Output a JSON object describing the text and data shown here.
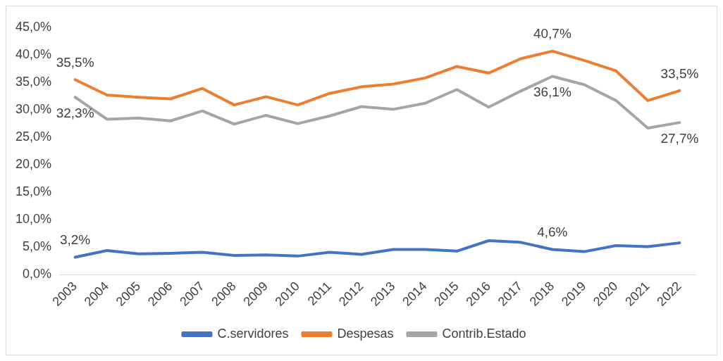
{
  "chart_data": {
    "type": "line",
    "categories": [
      "2003",
      "2004",
      "2005",
      "2006",
      "2007",
      "2008",
      "2009",
      "2010",
      "2011",
      "2012",
      "2013",
      "2014",
      "2015",
      "2016",
      "2017",
      "2018",
      "2019",
      "2020",
      "2021",
      "2022"
    ],
    "series": [
      {
        "name": "C.servidores",
        "color": "#4472c4",
        "values": [
          3.2,
          4.4,
          3.8,
          3.9,
          4.1,
          3.5,
          3.6,
          3.4,
          4.1,
          3.7,
          4.6,
          4.6,
          4.3,
          6.2,
          5.9,
          4.6,
          4.2,
          5.3,
          5.1,
          5.8
        ],
        "value_labels": [
          "3,2%",
          null,
          null,
          null,
          null,
          null,
          null,
          null,
          null,
          null,
          null,
          null,
          null,
          null,
          null,
          "4,6%",
          null,
          null,
          null,
          null
        ]
      },
      {
        "name": "Despesas",
        "color": "#ed7d31",
        "values": [
          35.5,
          32.7,
          32.3,
          32.0,
          33.9,
          30.9,
          32.4,
          30.9,
          33.0,
          34.2,
          34.7,
          35.8,
          37.9,
          36.7,
          39.3,
          40.7,
          39.0,
          37.1,
          31.7,
          33.5
        ],
        "value_labels": [
          "35,5%",
          null,
          null,
          null,
          null,
          null,
          null,
          null,
          null,
          null,
          null,
          null,
          null,
          null,
          null,
          "40,7%",
          null,
          null,
          null,
          "33,5%"
        ]
      },
      {
        "name": "Contrib.Estado",
        "color": "#a5a5a5",
        "values": [
          32.3,
          28.3,
          28.5,
          28.0,
          29.8,
          27.4,
          29.0,
          27.5,
          28.9,
          30.6,
          30.1,
          31.2,
          33.7,
          30.5,
          33.4,
          36.1,
          34.6,
          31.7,
          26.7,
          27.7
        ],
        "value_labels": [
          "32,3%",
          null,
          null,
          null,
          null,
          null,
          null,
          null,
          null,
          null,
          null,
          null,
          null,
          null,
          null,
          "36,1%",
          null,
          null,
          null,
          "27,7%"
        ]
      }
    ],
    "ylim": [
      0,
      45
    ],
    "yticks": [
      {
        "value": 0,
        "label": "0,0%"
      },
      {
        "value": 5,
        "label": "5,0%"
      },
      {
        "value": 10,
        "label": "10,0%"
      },
      {
        "value": 15,
        "label": "15,0%"
      },
      {
        "value": 20,
        "label": "20,0%"
      },
      {
        "value": 25,
        "label": "25,0%"
      },
      {
        "value": 30,
        "label": "30,0%"
      },
      {
        "value": 35,
        "label": "35,0%"
      },
      {
        "value": 40,
        "label": "40,0%"
      },
      {
        "value": 45,
        "label": "45,0%"
      }
    ],
    "grid": false,
    "legend": "bottom",
    "marker": "none",
    "line_style": "solid"
  }
}
